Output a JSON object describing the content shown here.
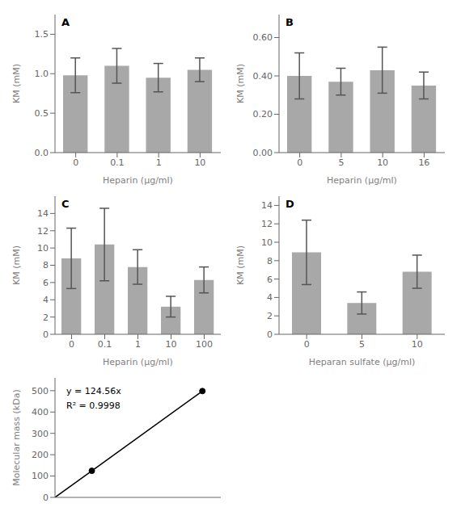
{
  "chart_data": [
    {
      "type": "bar",
      "title": "A",
      "categories": [
        "0",
        "0.1",
        "1",
        "10"
      ],
      "values": [
        0.98,
        1.1,
        0.95,
        1.05
      ],
      "errors": [
        0.22,
        0.22,
        0.18,
        0.15
      ],
      "xlabel": "Heparin (μg/ml)",
      "ylabel": "KM (mM)",
      "color": "#a8a8a8",
      "grid": false,
      "ylim": [
        0.0,
        1.75
      ],
      "yticks": [
        {
          "value": 0.0,
          "label": "0.0"
        },
        {
          "value": 0.5,
          "label": "0.5"
        },
        {
          "value": 1.0,
          "label": "1.0"
        },
        {
          "value": 1.5,
          "label": "1.5"
        }
      ]
    },
    {
      "type": "bar",
      "title": "B",
      "categories": [
        "0",
        "5",
        "10",
        "16"
      ],
      "values": [
        0.4,
        0.37,
        0.43,
        0.35
      ],
      "errors": [
        0.12,
        0.07,
        0.12,
        0.07
      ],
      "xlabel": "Heparin (μg/ml)",
      "ylabel": "KM (mM)",
      "color": "#a8a8a8",
      "grid": false,
      "ylim": [
        0.0,
        0.72
      ],
      "yticks": [
        {
          "value": 0.0,
          "label": "0.00"
        },
        {
          "value": 0.2,
          "label": "0.20"
        },
        {
          "value": 0.4,
          "label": "0.40"
        },
        {
          "value": 0.6,
          "label": "0.60"
        }
      ]
    },
    {
      "type": "bar",
      "title": "C",
      "categories": [
        "0",
        "0.1",
        "1",
        "10",
        "100"
      ],
      "values": [
        8.8,
        10.4,
        7.8,
        3.2,
        6.3
      ],
      "errors": [
        3.5,
        4.2,
        2.0,
        1.2,
        1.5
      ],
      "xlabel": "Heparin (μg/ml)",
      "ylabel": "KM (mM)",
      "color": "#a8a8a8",
      "grid": false,
      "ylim": [
        0,
        16
      ],
      "yticks": [
        0,
        2,
        4,
        6,
        8,
        10,
        12,
        14
      ]
    },
    {
      "type": "bar",
      "title": "D",
      "categories": [
        "0",
        "5",
        "10"
      ],
      "values": [
        8.9,
        3.4,
        6.8
      ],
      "errors": [
        3.5,
        1.2,
        1.8
      ],
      "xlabel": "Heparan sulfate (μg/ml)",
      "ylabel": "KM (mM)",
      "color": "#a8a8a8",
      "grid": false,
      "ylim": [
        0,
        15
      ],
      "yticks": [
        0,
        2,
        4,
        6,
        8,
        10,
        12,
        14
      ]
    },
    {
      "type": "line",
      "x": [
        0,
        1,
        4
      ],
      "series": [
        {
          "type": "line",
          "color": "#000000",
          "marker": "none",
          "values": [
            0,
            124.56,
            498.24
          ]
        },
        {
          "type": "scatter",
          "color": "#000000",
          "marker": "circle",
          "values": [
            null,
            124.56,
            498.24
          ]
        }
      ],
      "ylabel": "Molecular mass (kDa)",
      "annotations": [
        "y = 124.56x",
        "R² = 0.9998"
      ],
      "grid": false,
      "tick_labels": "y",
      "xlim": [
        0,
        4.5
      ],
      "ylim": [
        0,
        560
      ],
      "yticks": [
        0,
        100,
        200,
        300,
        400,
        500
      ]
    }
  ]
}
